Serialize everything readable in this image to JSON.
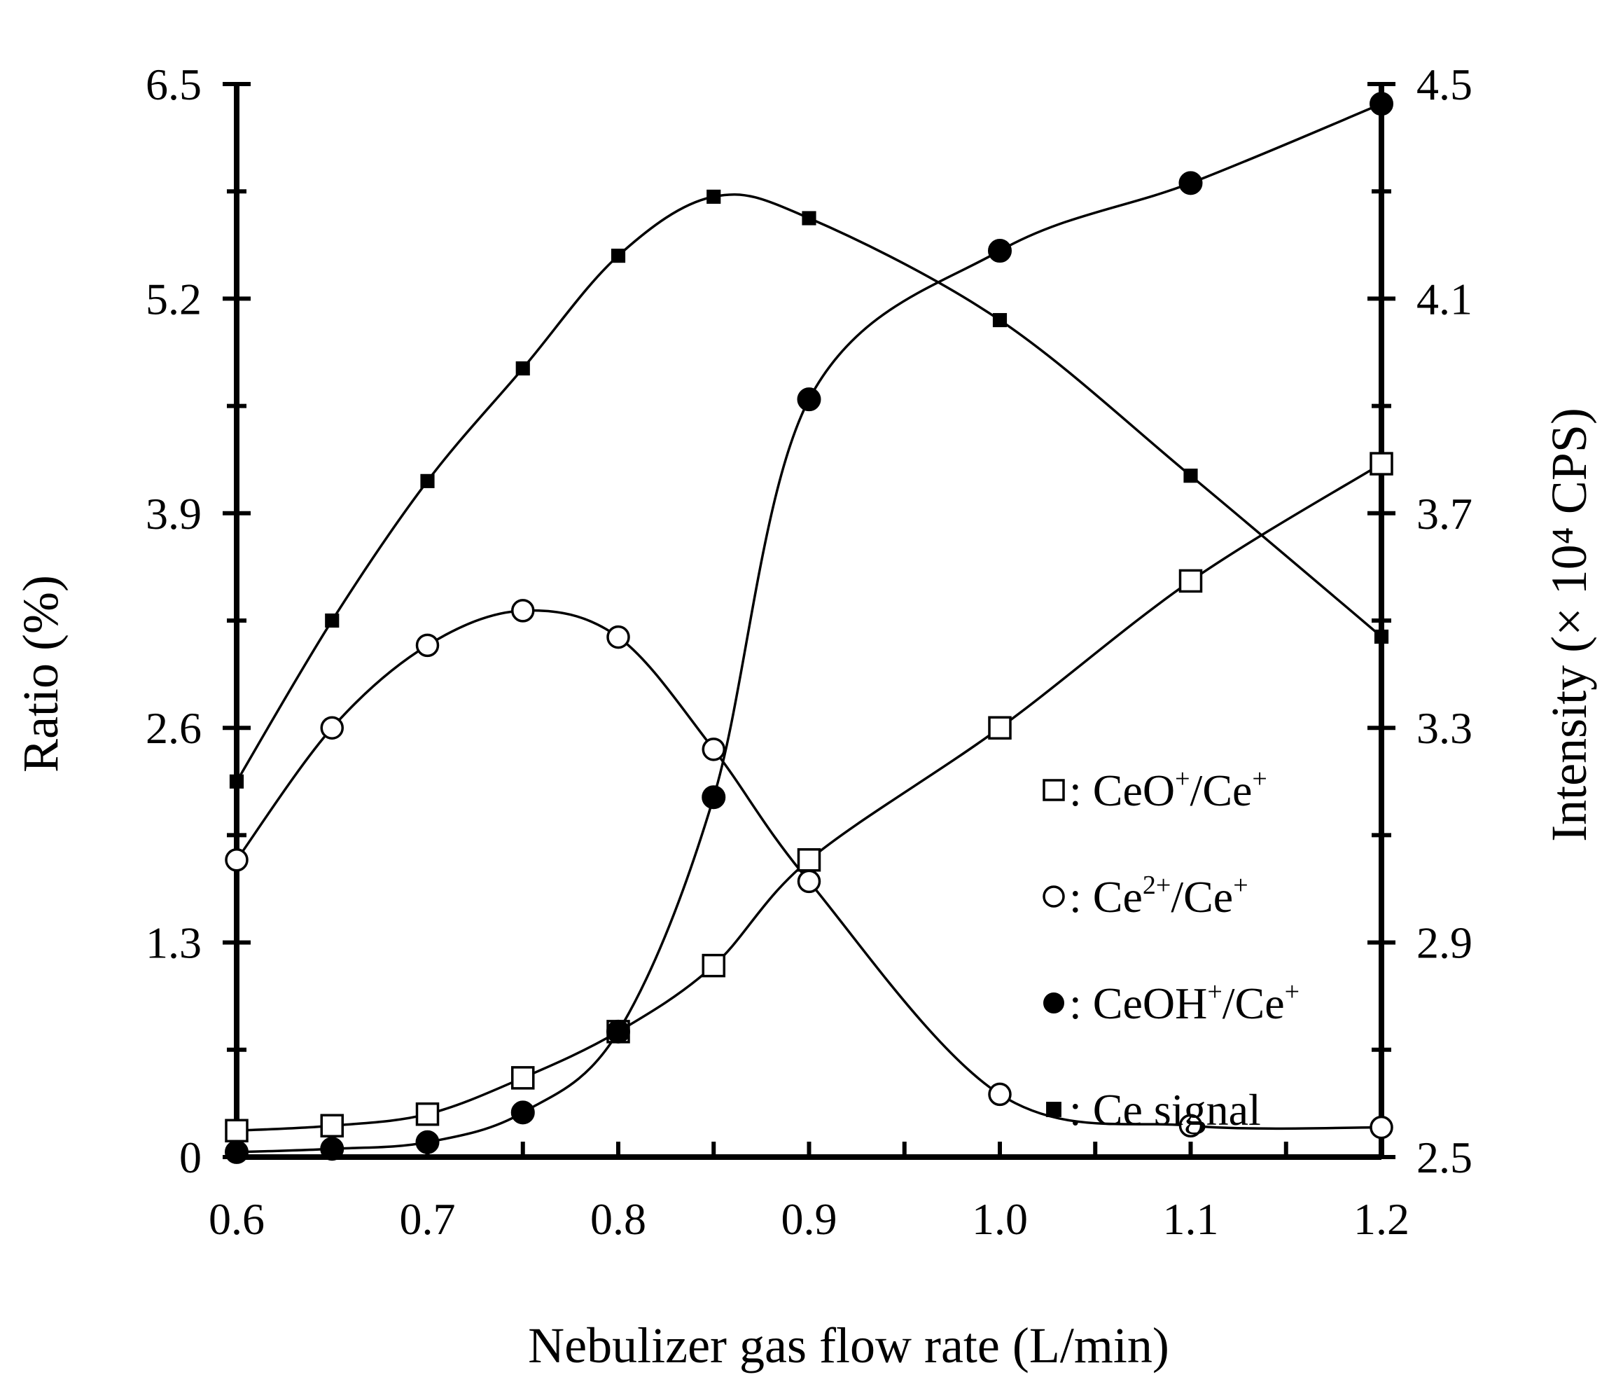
{
  "chart_data": {
    "type": "line",
    "title": "",
    "xlabel": "Nebulizer gas flow rate (L/min)",
    "ylabel_left": "Ratio (%)",
    "ylabel_right": "Intensity (× 10⁴ CPS)",
    "xlim": [
      0.6,
      1.2
    ],
    "ylim_left": [
      0,
      6.5
    ],
    "ylim_right": [
      2.5,
      4.5
    ],
    "x_ticks": [
      0.6,
      0.7,
      0.8,
      0.9,
      1.0,
      1.1,
      1.2
    ],
    "x_tick_labels": [
      "0.6",
      "0.7",
      "0.8",
      "0.9",
      "1.0",
      "1.1",
      "1.2"
    ],
    "y_left_ticks": [
      0,
      1.3,
      2.6,
      3.9,
      5.2,
      6.5
    ],
    "y_left_tick_labels": [
      "0",
      "1.3",
      "2.6",
      "3.9",
      "5.2",
      "6.5"
    ],
    "y_right_ticks": [
      2.5,
      2.9,
      3.3,
      3.7,
      4.1,
      4.5
    ],
    "y_right_tick_labels": [
      "2.5",
      "2.9",
      "3.3",
      "3.7",
      "4.1",
      "4.5"
    ],
    "grid": false,
    "legend_position": "right-middle",
    "series": [
      {
        "name": "CeO+/Ce+",
        "label_main": "CeO",
        "label_sup1": "+",
        "label_mid": "/Ce",
        "label_sup2": "+",
        "marker": "open-square",
        "axis": "left",
        "x": [
          0.6,
          0.65,
          0.7,
          0.75,
          0.8,
          0.85,
          0.9,
          1.0,
          1.1,
          1.2
        ],
        "y": [
          0.16,
          0.19,
          0.26,
          0.48,
          0.76,
          1.16,
          1.8,
          2.6,
          3.49,
          4.2
        ]
      },
      {
        "name": "Ce2+/Ce+",
        "label_main": "Ce",
        "label_sup1": "2+",
        "label_mid": "/Ce",
        "label_sup2": "+",
        "marker": "open-circle",
        "axis": "left",
        "x": [
          0.6,
          0.65,
          0.7,
          0.75,
          0.8,
          0.85,
          0.9,
          1.0,
          1.1,
          1.2
        ],
        "y": [
          1.8,
          2.6,
          3.1,
          3.31,
          3.15,
          2.47,
          1.67,
          0.38,
          0.19,
          0.18
        ]
      },
      {
        "name": "CeOH+/Ce+",
        "label_main": "CeOH",
        "label_sup1": "+",
        "label_mid": "/Ce",
        "label_sup2": "+",
        "marker": "filled-circle",
        "axis": "left",
        "x": [
          0.6,
          0.65,
          0.7,
          0.75,
          0.8,
          0.85,
          0.9,
          1.0,
          1.1,
          1.2
        ],
        "y": [
          0.03,
          0.05,
          0.09,
          0.27,
          0.76,
          2.18,
          4.59,
          5.49,
          5.9,
          6.38
        ]
      },
      {
        "name": "Ce signal",
        "label_main": "Ce signal",
        "label_sup1": "",
        "label_mid": "",
        "label_sup2": "",
        "marker": "filled-square",
        "axis": "right",
        "x": [
          0.6,
          0.65,
          0.7,
          0.75,
          0.8,
          0.85,
          0.9,
          1.0,
          1.1,
          1.2
        ],
        "y": [
          3.2,
          3.5,
          3.76,
          3.97,
          4.18,
          4.29,
          4.25,
          4.06,
          3.77,
          3.47
        ]
      }
    ]
  }
}
